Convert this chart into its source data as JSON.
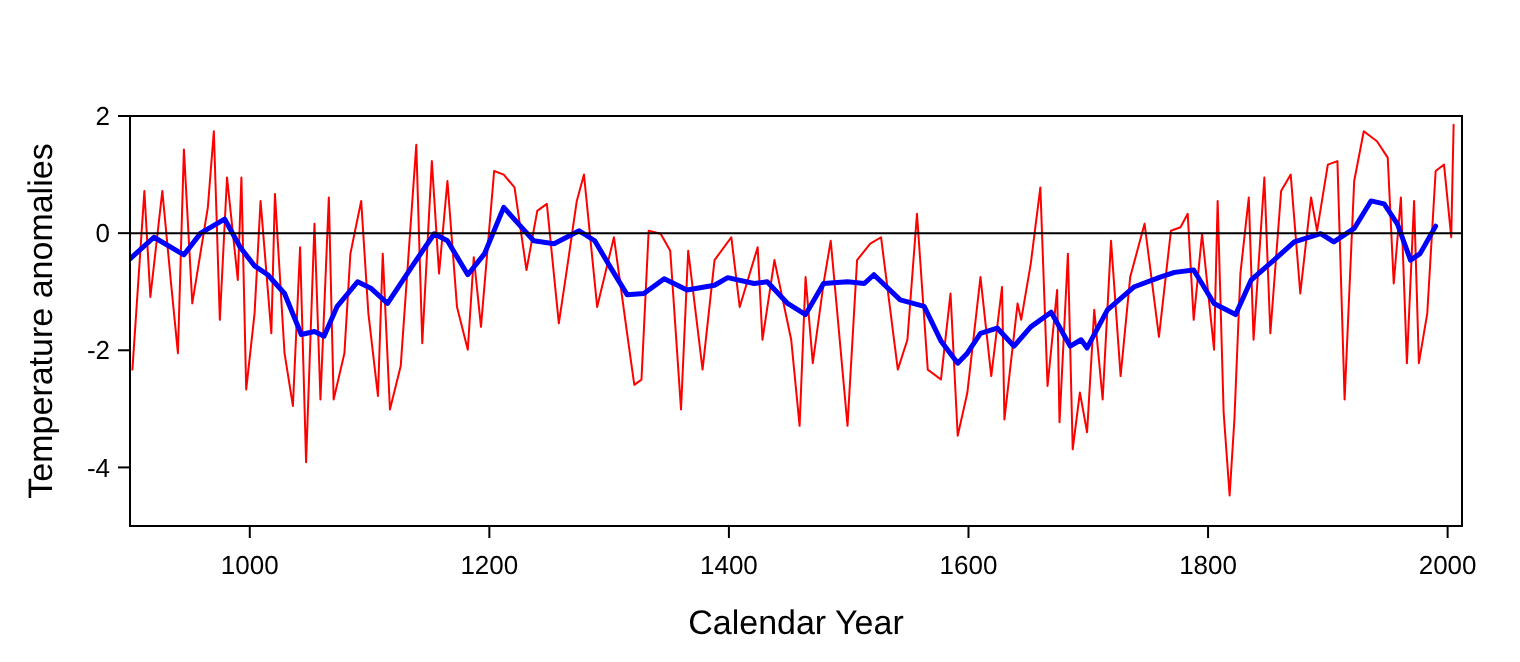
{
  "chart_data": {
    "type": "line",
    "xlabel": "Calendar Year",
    "ylabel": "Temperature anomalies",
    "xlim": [
      900,
      2012
    ],
    "ylim": [
      -5,
      2
    ],
    "xticks": [
      1000,
      1200,
      1400,
      1600,
      1800,
      2000
    ],
    "yticks": [
      -4,
      -2,
      0,
      2
    ],
    "grid": false,
    "marker": "none",
    "line_style": "solid",
    "ref_lines": [
      {
        "axis": "y",
        "value": 0,
        "color": "#000000"
      }
    ],
    "series": [
      {
        "color": "#ff0000",
        "x": [
          902,
          912,
          917,
          927,
          934,
          940,
          945,
          952,
          965,
          970,
          975,
          981,
          990,
          993,
          997,
          1004,
          1009,
          1018,
          1021,
          1029,
          1036,
          1042,
          1047,
          1054,
          1059,
          1066,
          1070,
          1079,
          1084,
          1093,
          1099,
          1107,
          1111,
          1117,
          1126,
          1132,
          1139,
          1144,
          1152,
          1158,
          1165,
          1173,
          1182,
          1187,
          1193,
          1204,
          1212,
          1221,
          1231,
          1240,
          1248,
          1258,
          1265,
          1273,
          1279,
          1290,
          1304,
          1315,
          1321,
          1327,
          1333,
          1343,
          1351,
          1360,
          1366,
          1378,
          1388,
          1402,
          1409,
          1424,
          1428,
          1438,
          1452,
          1459,
          1464,
          1470,
          1479,
          1485,
          1499,
          1507,
          1518,
          1527,
          1541,
          1549,
          1557,
          1566,
          1577,
          1585,
          1591,
          1599,
          1610,
          1619,
          1628,
          1630,
          1641,
          1644,
          1652,
          1660,
          1666,
          1674,
          1676,
          1683,
          1687,
          1693,
          1699,
          1705,
          1712,
          1719,
          1727,
          1735,
          1747,
          1759,
          1769,
          1777,
          1783,
          1788,
          1795,
          1805,
          1808,
          1813,
          1818,
          1822,
          1827,
          1834,
          1838,
          1847,
          1852,
          1861,
          1869,
          1877,
          1886,
          1891,
          1900,
          1908,
          1914,
          1922,
          1930,
          1941,
          1950,
          1955,
          1961,
          1966,
          1972,
          1976,
          1983,
          1990,
          1997,
          2003,
          2005
        ],
        "values": [
          -2.33,
          0.72,
          -1.09,
          0.72,
          -0.8,
          -2.05,
          1.43,
          -1.2,
          0.44,
          1.74,
          -1.48,
          0.95,
          -0.8,
          0.95,
          -2.67,
          -1.37,
          0.55,
          -1.71,
          0.67,
          -2.05,
          -2.95,
          -0.24,
          -3.91,
          0.16,
          -2.84,
          0.61,
          -2.84,
          -2.05,
          -0.35,
          0.55,
          -1.37,
          -2.78,
          -0.35,
          -3.01,
          -2.27,
          -0.52,
          1.51,
          -1.88,
          1.23,
          -0.69,
          0.89,
          -1.26,
          -1.99,
          -0.41,
          -1.6,
          1.06,
          1.0,
          0.78,
          -0.63,
          0.38,
          0.5,
          -1.54,
          -0.58,
          0.55,
          1.0,
          -1.26,
          -0.07,
          -1.71,
          -2.59,
          -2.5,
          0.04,
          -0.01,
          -0.3,
          -3.01,
          -0.3,
          -2.33,
          -0.46,
          -0.07,
          -1.26,
          -0.24,
          -1.82,
          -0.46,
          -1.82,
          -3.29,
          -0.75,
          -2.22,
          -0.86,
          -0.13,
          -3.29,
          -0.46,
          -0.18,
          -0.07,
          -2.33,
          -1.82,
          0.33,
          -2.33,
          -2.5,
          -1.03,
          -3.46,
          -2.73,
          -0.75,
          -2.44,
          -0.92,
          -3.18,
          -1.2,
          -1.48,
          -0.52,
          0.78,
          -2.61,
          -0.97,
          -3.23,
          -0.35,
          -3.69,
          -2.72,
          -3.4,
          -1.31,
          -2.84,
          -0.13,
          -2.44,
          -0.75,
          0.16,
          -1.77,
          0.04,
          0.1,
          0.33,
          -1.48,
          -0.01,
          -1.99,
          0.55,
          -3.06,
          -4.48,
          -3.18,
          -0.69,
          0.61,
          -1.82,
          0.95,
          -1.71,
          0.72,
          1.0,
          -1.03,
          0.61,
          0.04,
          1.17,
          1.23,
          -2.84,
          0.89,
          1.74,
          1.57,
          1.29,
          -0.86,
          0.61,
          -2.22,
          0.55,
          -2.22,
          -1.37,
          1.06,
          1.17,
          -0.07,
          1.85
        ]
      },
      {
        "color": "#0000ff",
        "x": [
          900,
          920,
          945,
          959,
          979,
          992,
          1004,
          1015,
          1029,
          1043,
          1054,
          1062,
          1073,
          1090,
          1101,
          1115,
          1137,
          1154,
          1165,
          1182,
          1196,
          1212,
          1226,
          1237,
          1254,
          1275,
          1288,
          1301,
          1315,
          1329,
          1346,
          1365,
          1388,
          1399,
          1421,
          1432,
          1449,
          1464,
          1479,
          1499,
          1513,
          1521,
          1543,
          1563,
          1577,
          1591,
          1599,
          1610,
          1624,
          1638,
          1652,
          1669,
          1685,
          1694,
          1699,
          1716,
          1738,
          1760,
          1772,
          1788,
          1805,
          1823,
          1836,
          1855,
          1872,
          1894,
          1905,
          1922,
          1936,
          1947,
          1958,
          1969,
          1977,
          1990
        ],
        "values": [
          -0.44,
          -0.07,
          -0.37,
          0,
          0.24,
          -0.24,
          -0.56,
          -0.71,
          -1.03,
          -1.73,
          -1.68,
          -1.76,
          -1.25,
          -0.83,
          -0.94,
          -1.2,
          -0.52,
          -0.01,
          -0.13,
          -0.71,
          -0.35,
          0.44,
          0.12,
          -0.13,
          -0.18,
          0.04,
          -0.13,
          -0.58,
          -1.05,
          -1.03,
          -0.78,
          -0.97,
          -0.89,
          -0.76,
          -0.86,
          -0.83,
          -1.2,
          -1.39,
          -0.86,
          -0.83,
          -0.86,
          -0.71,
          -1.14,
          -1.25,
          -1.84,
          -2.22,
          -2.05,
          -1.71,
          -1.62,
          -1.93,
          -1.6,
          -1.35,
          -1.93,
          -1.82,
          -1.96,
          -1.31,
          -0.92,
          -0.75,
          -0.67,
          -0.63,
          -1.2,
          -1.39,
          -0.8,
          -0.46,
          -0.15,
          -0.01,
          -0.15,
          0.08,
          0.55,
          0.5,
          0.16,
          -0.46,
          -0.35,
          0.12
        ]
      }
    ]
  }
}
